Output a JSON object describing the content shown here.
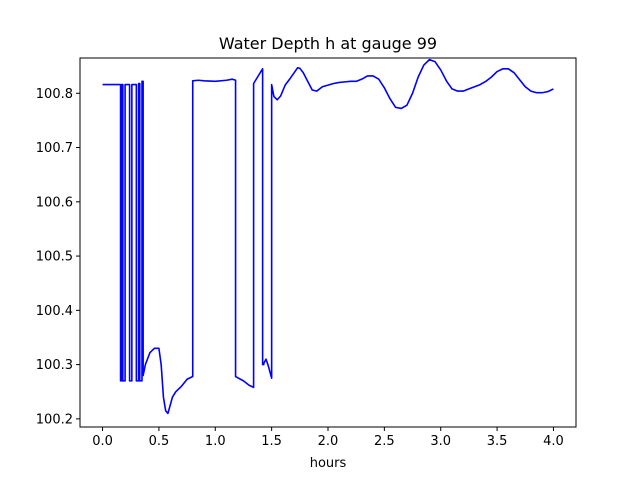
{
  "chart_data": {
    "type": "line",
    "title": "Water Depth h at gauge 99",
    "xlabel": "hours",
    "ylabel": "",
    "xlim": [
      -0.2,
      4.2
    ],
    "ylim": [
      100.185,
      100.865
    ],
    "xticks": [
      0.0,
      0.5,
      1.0,
      1.5,
      2.0,
      2.5,
      3.0,
      3.5,
      4.0
    ],
    "xtick_labels": [
      "0.0",
      "0.5",
      "1.0",
      "1.5",
      "2.0",
      "2.5",
      "3.0",
      "3.5",
      "4.0"
    ],
    "yticks": [
      100.2,
      100.3,
      100.4,
      100.5,
      100.6,
      100.7,
      100.8
    ],
    "ytick_labels": [
      "100.2",
      "100.3",
      "100.4",
      "100.5",
      "100.6",
      "100.7",
      "100.8"
    ],
    "grid": false,
    "series": [
      {
        "color": "#0000ff",
        "x": [
          0.0,
          0.16,
          0.16,
          0.17,
          0.17,
          0.18,
          0.18,
          0.2,
          0.2,
          0.24,
          0.24,
          0.26,
          0.26,
          0.3,
          0.3,
          0.32,
          0.32,
          0.33,
          0.33,
          0.35,
          0.35,
          0.36,
          0.36,
          0.38,
          0.42,
          0.46,
          0.5,
          0.52,
          0.54,
          0.56,
          0.58,
          0.6,
          0.62,
          0.65,
          0.7,
          0.75,
          0.8,
          0.8,
          0.85,
          0.9,
          1.0,
          1.1,
          1.15,
          1.18,
          1.18,
          1.25,
          1.3,
          1.34,
          1.34,
          1.42,
          1.42,
          1.43,
          1.43,
          1.45,
          1.47,
          1.5,
          1.5,
          1.52,
          1.55,
          1.58,
          1.62,
          1.66,
          1.7,
          1.73,
          1.75,
          1.78,
          1.82,
          1.86,
          1.9,
          1.95,
          2.0,
          2.05,
          2.1,
          2.15,
          2.2,
          2.25,
          2.3,
          2.35,
          2.4,
          2.45,
          2.5,
          2.55,
          2.6,
          2.65,
          2.7,
          2.75,
          2.8,
          2.85,
          2.9,
          2.95,
          3.0,
          3.05,
          3.1,
          3.15,
          3.2,
          3.25,
          3.3,
          3.35,
          3.4,
          3.45,
          3.5,
          3.55,
          3.6,
          3.65,
          3.7,
          3.75,
          3.8,
          3.85,
          3.9,
          3.95,
          4.0
        ],
        "y": [
          100.816,
          100.816,
          100.27,
          100.27,
          100.816,
          100.816,
          100.27,
          100.27,
          100.816,
          100.816,
          100.27,
          100.27,
          100.816,
          100.816,
          100.27,
          100.27,
          100.818,
          100.818,
          100.27,
          100.27,
          100.822,
          100.822,
          100.28,
          100.3,
          100.322,
          100.33,
          100.33,
          100.3,
          100.24,
          100.215,
          100.21,
          100.225,
          100.24,
          100.25,
          100.26,
          100.273,
          100.278,
          100.823,
          100.824,
          100.823,
          100.822,
          100.824,
          100.826,
          100.824,
          100.278,
          100.27,
          100.262,
          100.258,
          100.818,
          100.845,
          100.3,
          100.3,
          100.302,
          100.31,
          100.298,
          100.275,
          100.816,
          100.794,
          100.788,
          100.795,
          100.815,
          100.826,
          100.838,
          100.847,
          100.846,
          100.838,
          100.822,
          100.806,
          100.804,
          100.812,
          100.815,
          100.818,
          100.82,
          100.821,
          100.822,
          100.822,
          100.826,
          100.832,
          100.832,
          100.826,
          100.81,
          100.79,
          100.774,
          100.772,
          100.778,
          100.8,
          100.83,
          100.852,
          100.862,
          100.858,
          100.843,
          100.823,
          100.808,
          100.804,
          100.804,
          100.808,
          100.812,
          100.816,
          100.822,
          100.83,
          100.84,
          100.845,
          100.845,
          100.838,
          100.825,
          100.812,
          100.804,
          100.801,
          100.801,
          100.803,
          100.808
        ]
      }
    ]
  }
}
